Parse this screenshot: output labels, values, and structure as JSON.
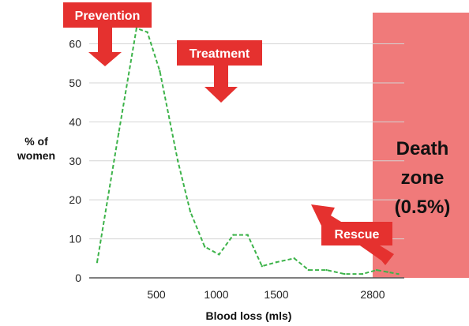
{
  "chart_data": {
    "type": "line",
    "x_categories": [
      "500",
      "1000",
      "1500",
      "2800"
    ],
    "series": [
      {
        "style": "dashed",
        "color": "#3db34a",
        "points": [
          [
            0.0,
            4
          ],
          [
            0.12,
            37
          ],
          [
            0.22,
            64
          ],
          [
            0.28,
            63
          ],
          [
            0.35,
            53
          ],
          [
            0.45,
            30
          ],
          [
            0.52,
            17
          ],
          [
            0.6,
            8
          ],
          [
            0.68,
            6
          ],
          [
            0.76,
            11
          ],
          [
            0.84,
            11
          ],
          [
            0.92,
            3
          ],
          [
            1.0,
            4
          ],
          [
            1.1,
            5
          ],
          [
            1.18,
            2
          ],
          [
            1.28,
            2
          ],
          [
            1.38,
            1
          ],
          [
            1.48,
            1
          ],
          [
            1.56,
            2
          ],
          [
            1.62,
            1.5
          ],
          [
            1.68,
            1
          ]
        ]
      }
    ],
    "x_point_convention": "0 = left end of axis, 1 = tick 1500, 1.5 = tick 2800 (category index units)",
    "ylim": [
      0,
      68
    ],
    "yticks": [
      0,
      10,
      20,
      30,
      40,
      50,
      60
    ],
    "ylabel_lines": [
      "% of",
      "women"
    ],
    "xlabel": "Blood loss (mls)",
    "grid": "horizontal",
    "death_zone": {
      "label_lines": [
        "Death",
        "zone",
        "(0.5%)"
      ],
      "color": "#f07a7a"
    },
    "callouts": [
      {
        "label": "Prevention",
        "arrow": "down"
      },
      {
        "label": "Treatment",
        "arrow": "down"
      },
      {
        "label": "Rescue",
        "arrow": "up-left"
      }
    ],
    "callout_color": "#e5312f"
  }
}
